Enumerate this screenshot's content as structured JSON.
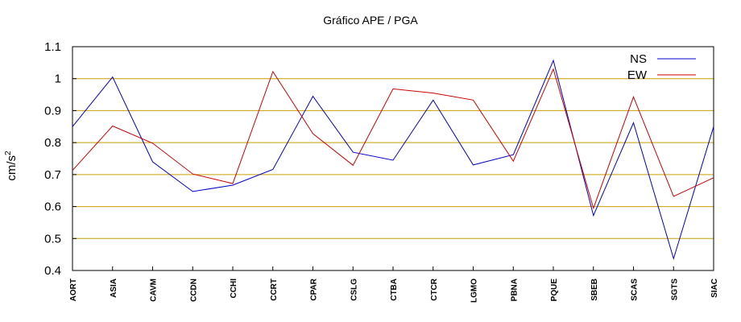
{
  "chart_data": {
    "type": "line",
    "title": "Gráfico  APE / PGA",
    "ylabel": {
      "base": "cm/s",
      "sup": "2"
    },
    "xlabel": "",
    "categories": [
      "AORT",
      "ASIA",
      "CAVM",
      "CCDN",
      "CCHI",
      "CCRT",
      "CPAR",
      "CSLG",
      "CTBA",
      "CTCR",
      "LGMO",
      "PBNA",
      "PQUE",
      "SBEB",
      "SCAS",
      "SGTS",
      "SIAC"
    ],
    "ylim": [
      0.4,
      1.1
    ],
    "yticks": [
      "0.4",
      "0.5",
      "0.6",
      "0.7",
      "0.8",
      "0.9",
      "1",
      "1.1"
    ],
    "grid": "horizontal",
    "legend_position": "top-right",
    "series": [
      {
        "name": "NS",
        "color": "#0000cc",
        "values": [
          0.85,
          1.005,
          0.74,
          0.647,
          0.667,
          0.716,
          0.945,
          0.77,
          0.745,
          0.933,
          0.73,
          0.762,
          1.057,
          0.572,
          0.862,
          0.437,
          0.85
        ]
      },
      {
        "name": "EW",
        "color": "#cc0000",
        "values": [
          0.713,
          0.852,
          0.798,
          0.702,
          0.672,
          1.022,
          0.828,
          0.729,
          0.968,
          0.955,
          0.933,
          0.742,
          1.03,
          0.595,
          0.943,
          0.632,
          0.69
        ]
      }
    ],
    "colors": {
      "grid": "#c8a000",
      "axis": "#000000",
      "background": "#ffffff"
    }
  }
}
